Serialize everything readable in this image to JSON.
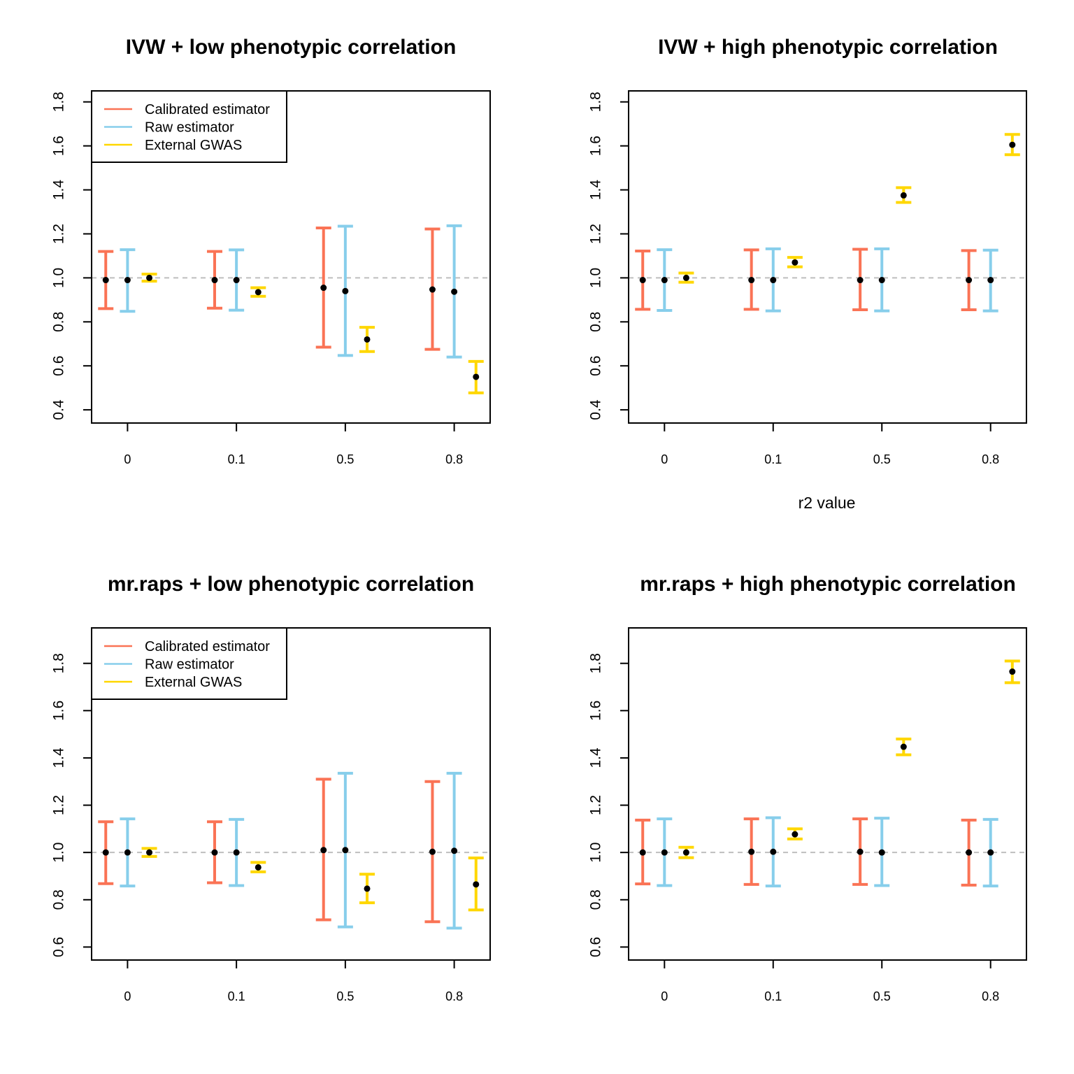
{
  "colors": {
    "calibrated": "#FA7355",
    "raw": "#87CEEB",
    "external": "#FFD700",
    "reference_line": "#BEBEBE",
    "point": "#000000"
  },
  "chart_data": [
    {
      "type": "errorbar",
      "title": "IVW + low phenotypic correlation",
      "xlabel": "",
      "categories": [
        "0",
        "0.1",
        "0.5",
        "0.8"
      ],
      "yticks": [
        0.4,
        0.6,
        0.8,
        1.0,
        1.2,
        1.4,
        1.6,
        1.8
      ],
      "ylim": [
        0.34,
        1.85
      ],
      "reference_y": 1.0,
      "legend": {
        "position": "top-left",
        "entries": [
          "Calibrated estimator",
          "Raw estimator",
          "External GWAS"
        ]
      },
      "series": [
        {
          "name": "Calibrated estimator",
          "color_key": "calibrated",
          "mean": [
            0.99,
            0.99,
            0.955,
            0.947
          ],
          "lower": [
            0.86,
            0.862,
            0.685,
            0.675
          ],
          "upper": [
            1.12,
            1.12,
            1.227,
            1.222
          ]
        },
        {
          "name": "Raw estimator",
          "color_key": "raw",
          "mean": [
            0.99,
            0.99,
            0.94,
            0.937
          ],
          "lower": [
            0.848,
            0.853,
            0.647,
            0.64
          ],
          "upper": [
            1.128,
            1.127,
            1.235,
            1.237
          ]
        },
        {
          "name": "External GWAS",
          "color_key": "external",
          "mean": [
            1.0,
            0.935,
            0.72,
            0.55
          ],
          "lower": [
            0.985,
            0.916,
            0.665,
            0.477
          ],
          "upper": [
            1.017,
            0.955,
            0.775,
            0.62
          ]
        }
      ]
    },
    {
      "type": "errorbar",
      "title": "IVW + high phenotypic correlation",
      "xlabel": "r2 value",
      "categories": [
        "0",
        "0.1",
        "0.5",
        "0.8"
      ],
      "yticks": [
        0.4,
        0.6,
        0.8,
        1.0,
        1.2,
        1.4,
        1.6,
        1.8
      ],
      "ylim": [
        0.34,
        1.85
      ],
      "reference_y": 1.0,
      "series": [
        {
          "name": "Calibrated estimator",
          "color_key": "calibrated",
          "mean": [
            0.99,
            0.99,
            0.99,
            0.99
          ],
          "lower": [
            0.857,
            0.857,
            0.855,
            0.855
          ],
          "upper": [
            1.122,
            1.127,
            1.13,
            1.124
          ]
        },
        {
          "name": "Raw estimator",
          "color_key": "raw",
          "mean": [
            0.99,
            0.99,
            0.99,
            0.99
          ],
          "lower": [
            0.852,
            0.85,
            0.85,
            0.85
          ],
          "upper": [
            1.128,
            1.132,
            1.132,
            1.126
          ]
        },
        {
          "name": "External GWAS",
          "color_key": "external",
          "mean": [
            1.0,
            1.07,
            1.375,
            1.605
          ],
          "lower": [
            0.98,
            1.05,
            1.343,
            1.56
          ],
          "upper": [
            1.022,
            1.093,
            1.41,
            1.652
          ]
        }
      ]
    },
    {
      "type": "errorbar",
      "title": "mr.raps + low phenotypic correlation",
      "xlabel": "",
      "categories": [
        "0",
        "0.1",
        "0.5",
        "0.8"
      ],
      "yticks": [
        0.6,
        0.8,
        1.0,
        1.2,
        1.4,
        1.6,
        1.8
      ],
      "ylim": [
        0.545,
        1.95
      ],
      "reference_y": 1.0,
      "legend": {
        "position": "top-left",
        "entries": [
          "Calibrated estimator",
          "Raw estimator",
          "External GWAS"
        ]
      },
      "series": [
        {
          "name": "Calibrated estimator",
          "color_key": "calibrated",
          "mean": [
            1.0,
            1.0,
            1.01,
            1.003
          ],
          "lower": [
            0.868,
            0.872,
            0.715,
            0.707
          ],
          "upper": [
            1.13,
            1.13,
            1.31,
            1.3
          ]
        },
        {
          "name": "Raw estimator",
          "color_key": "raw",
          "mean": [
            1.0,
            1.0,
            1.01,
            1.007
          ],
          "lower": [
            0.858,
            0.86,
            0.685,
            0.68
          ],
          "upper": [
            1.142,
            1.14,
            1.335,
            1.335
          ]
        },
        {
          "name": "External GWAS",
          "color_key": "external",
          "mean": [
            1.0,
            0.937,
            0.847,
            0.865
          ],
          "lower": [
            0.983,
            0.918,
            0.787,
            0.757
          ],
          "upper": [
            1.017,
            0.958,
            0.908,
            0.977
          ]
        }
      ]
    },
    {
      "type": "errorbar",
      "title": "mr.raps + high phenotypic correlation",
      "xlabel": "",
      "categories": [
        "0",
        "0.1",
        "0.5",
        "0.8"
      ],
      "yticks": [
        0.6,
        0.8,
        1.0,
        1.2,
        1.4,
        1.6,
        1.8
      ],
      "ylim": [
        0.545,
        1.95
      ],
      "reference_y": 1.0,
      "series": [
        {
          "name": "Calibrated estimator",
          "color_key": "calibrated",
          "mean": [
            1.0,
            1.003,
            1.003,
            1.0
          ],
          "lower": [
            0.867,
            0.865,
            0.865,
            0.862
          ],
          "upper": [
            1.137,
            1.142,
            1.142,
            1.137
          ]
        },
        {
          "name": "Raw estimator",
          "color_key": "raw",
          "mean": [
            1.0,
            1.003,
            1.0,
            1.0
          ],
          "lower": [
            0.86,
            0.858,
            0.86,
            0.858
          ],
          "upper": [
            1.142,
            1.147,
            1.145,
            1.14
          ]
        },
        {
          "name": "External GWAS",
          "color_key": "external",
          "mean": [
            1.0,
            1.077,
            1.447,
            1.765
          ],
          "lower": [
            0.978,
            1.057,
            1.413,
            1.718
          ],
          "upper": [
            1.022,
            1.1,
            1.48,
            1.81
          ]
        }
      ]
    }
  ]
}
